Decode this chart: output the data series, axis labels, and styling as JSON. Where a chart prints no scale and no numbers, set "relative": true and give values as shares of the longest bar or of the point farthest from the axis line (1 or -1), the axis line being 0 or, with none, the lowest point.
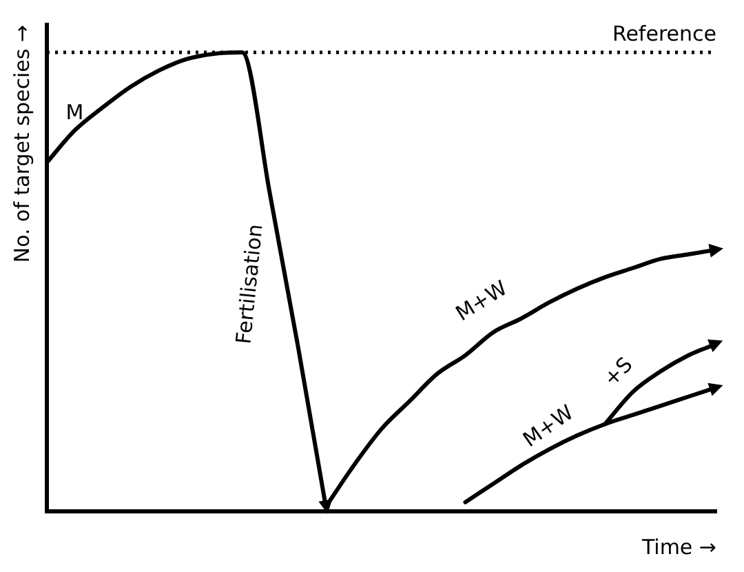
{
  "chart_data": {
    "type": "line",
    "relative": true,
    "xlabel": "Time →",
    "ylabel": "No. of target species →",
    "categories": [
      null,
      null,
      null,
      null,
      null,
      null,
      null,
      null,
      null,
      null,
      null,
      null,
      null,
      null,
      null,
      null,
      null,
      null,
      null,
      null,
      null,
      null,
      null,
      null,
      null
    ],
    "series": [
      {
        "name": "M",
        "color": "#000000",
        "values": [
          0.76,
          0.83,
          0.88,
          0.925,
          0.96,
          0.985,
          0.997,
          1,
          0.69,
          0.36,
          0.01,
          null,
          null,
          null,
          null,
          null,
          null,
          null,
          null,
          null,
          null,
          null,
          null,
          null,
          null
        ]
      },
      {
        "name": "M+W",
        "color": "#000000",
        "values": [
          null,
          null,
          null,
          null,
          null,
          null,
          null,
          null,
          null,
          null,
          0.01,
          0.1,
          0.18,
          0.24,
          0.3,
          0.34,
          0.39,
          0.42,
          0.455,
          0.485,
          0.51,
          0.53,
          0.55,
          0.56,
          0.57
        ]
      },
      {
        "name": "M+W",
        "color": "#000000",
        "values": [
          null,
          null,
          null,
          null,
          null,
          null,
          null,
          null,
          null,
          null,
          null,
          null,
          null,
          null,
          null,
          0.02,
          0.06,
          0.1,
          0.135,
          0.165,
          0.19,
          0.21,
          0.23,
          0.25,
          0.27
        ]
      },
      {
        "name": "+S",
        "color": "#000000",
        "values": [
          null,
          null,
          null,
          null,
          null,
          null,
          null,
          null,
          null,
          null,
          null,
          null,
          null,
          null,
          null,
          null,
          null,
          null,
          null,
          null,
          0.19,
          0.26,
          0.305,
          0.34,
          0.365
        ]
      }
    ],
    "ref_lines": [
      {
        "axis": "y",
        "value": 1,
        "label": "Reference",
        "color": "#000000",
        "line_style": "dotted"
      }
    ],
    "annotations": [
      "Fertilisation"
    ],
    "legend": false,
    "marker": "none",
    "line_style": "solid",
    "grid": false,
    "tick_labels": false
  }
}
